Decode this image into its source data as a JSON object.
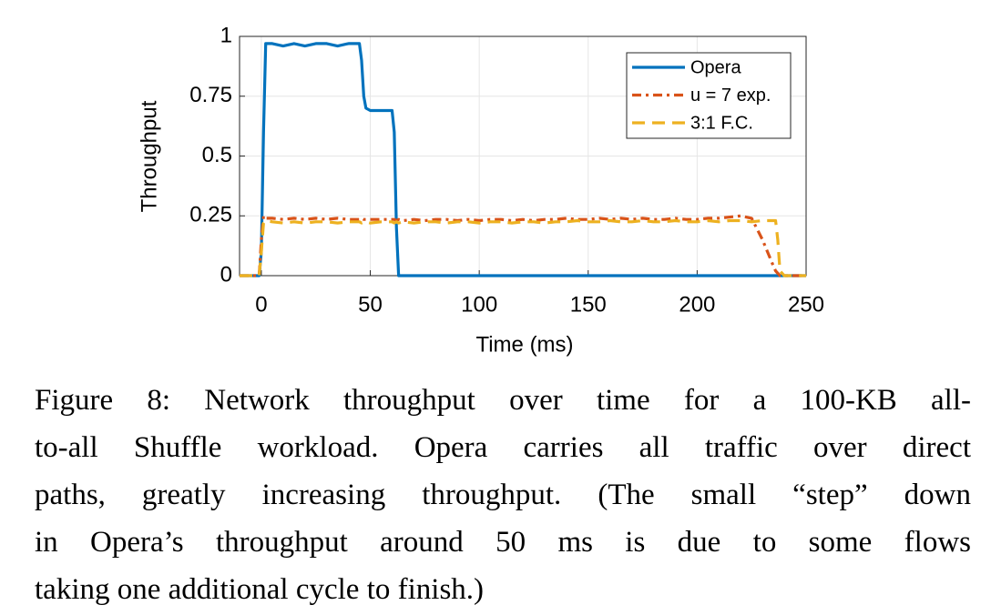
{
  "chart_data": {
    "type": "line",
    "xlabel": "Time (ms)",
    "ylabel": "Throughput",
    "x": [
      -10,
      -5,
      -1,
      0,
      1,
      2,
      5,
      10,
      15,
      20,
      25,
      30,
      35,
      40,
      45,
      46,
      47,
      48,
      50,
      55,
      60,
      61,
      62,
      63,
      65,
      70,
      75,
      80,
      85,
      90,
      95,
      100,
      105,
      110,
      115,
      120,
      125,
      130,
      135,
      140,
      145,
      150,
      155,
      160,
      165,
      170,
      175,
      180,
      185,
      190,
      195,
      200,
      205,
      210,
      215,
      220,
      225,
      230,
      235,
      236,
      237,
      238,
      240,
      245,
      250
    ],
    "series": [
      {
        "name": "Opera",
        "color": "#0072BD",
        "dash": "solid",
        "values": [
          0,
          0,
          0,
          0.1,
          0.6,
          0.97,
          0.97,
          0.96,
          0.97,
          0.96,
          0.97,
          0.97,
          0.96,
          0.97,
          0.97,
          0.9,
          0.75,
          0.7,
          0.69,
          0.69,
          0.69,
          0.6,
          0.2,
          0,
          0,
          0,
          0,
          0,
          0,
          0,
          0,
          0,
          0,
          0,
          0,
          0,
          0,
          0,
          0,
          0,
          0,
          0,
          0,
          0,
          0,
          0,
          0,
          0,
          0,
          0,
          0,
          0,
          0,
          0,
          0,
          0,
          0,
          0,
          0,
          0,
          0,
          0,
          0,
          0,
          0
        ]
      },
      {
        "name": "u = 7 exp.",
        "color": "#D95319",
        "dash": "dashdot",
        "values": [
          0,
          0,
          0,
          0.15,
          0.25,
          0.24,
          0.24,
          0.235,
          0.24,
          0.235,
          0.24,
          0.235,
          0.24,
          0.235,
          0.235,
          0.24,
          0.235,
          0.235,
          0.235,
          0.235,
          0.235,
          0.235,
          0.23,
          0.235,
          0.23,
          0.235,
          0.23,
          0.235,
          0.235,
          0.23,
          0.235,
          0.23,
          0.235,
          0.235,
          0.23,
          0.235,
          0.23,
          0.235,
          0.235,
          0.24,
          0.235,
          0.235,
          0.24,
          0.235,
          0.24,
          0.235,
          0.24,
          0.235,
          0.235,
          0.24,
          0.235,
          0.235,
          0.24,
          0.24,
          0.245,
          0.25,
          0.24,
          0.15,
          0.04,
          0.02,
          0.01,
          0,
          0,
          0,
          0
        ]
      },
      {
        "name": "3:1 F.C.",
        "color": "#EDB120",
        "dash": "dashed",
        "values": [
          0,
          0,
          0,
          0.1,
          0.22,
          0.23,
          0.225,
          0.22,
          0.225,
          0.22,
          0.225,
          0.225,
          0.22,
          0.225,
          0.225,
          0.22,
          0.225,
          0.225,
          0.22,
          0.225,
          0.225,
          0.22,
          0.225,
          0.22,
          0.225,
          0.22,
          0.225,
          0.225,
          0.22,
          0.225,
          0.225,
          0.22,
          0.225,
          0.225,
          0.22,
          0.225,
          0.225,
          0.22,
          0.225,
          0.225,
          0.23,
          0.225,
          0.225,
          0.23,
          0.225,
          0.225,
          0.23,
          0.225,
          0.225,
          0.23,
          0.225,
          0.225,
          0.23,
          0.225,
          0.23,
          0.23,
          0.225,
          0.23,
          0.23,
          0.23,
          0.15,
          0.02,
          0,
          0,
          0
        ]
      }
    ],
    "xlim": [
      -10,
      250
    ],
    "xticks": [
      0,
      50,
      100,
      150,
      200,
      250
    ],
    "ylim": [
      0,
      1
    ],
    "yticks": [
      0,
      0.25,
      0.5,
      0.75,
      1
    ],
    "grid": true,
    "legend": "top-right",
    "caption": [
      "Figure 8:  Network throughput over time for a 100-KB all-",
      "to-all Shuffle workload. Opera carries all traffic over direct",
      "paths, greatly increasing throughput. (The small “step” down",
      "in Opera’s throughput around 50 ms is due to some flows",
      "taking one additional cycle to finish.)"
    ]
  }
}
